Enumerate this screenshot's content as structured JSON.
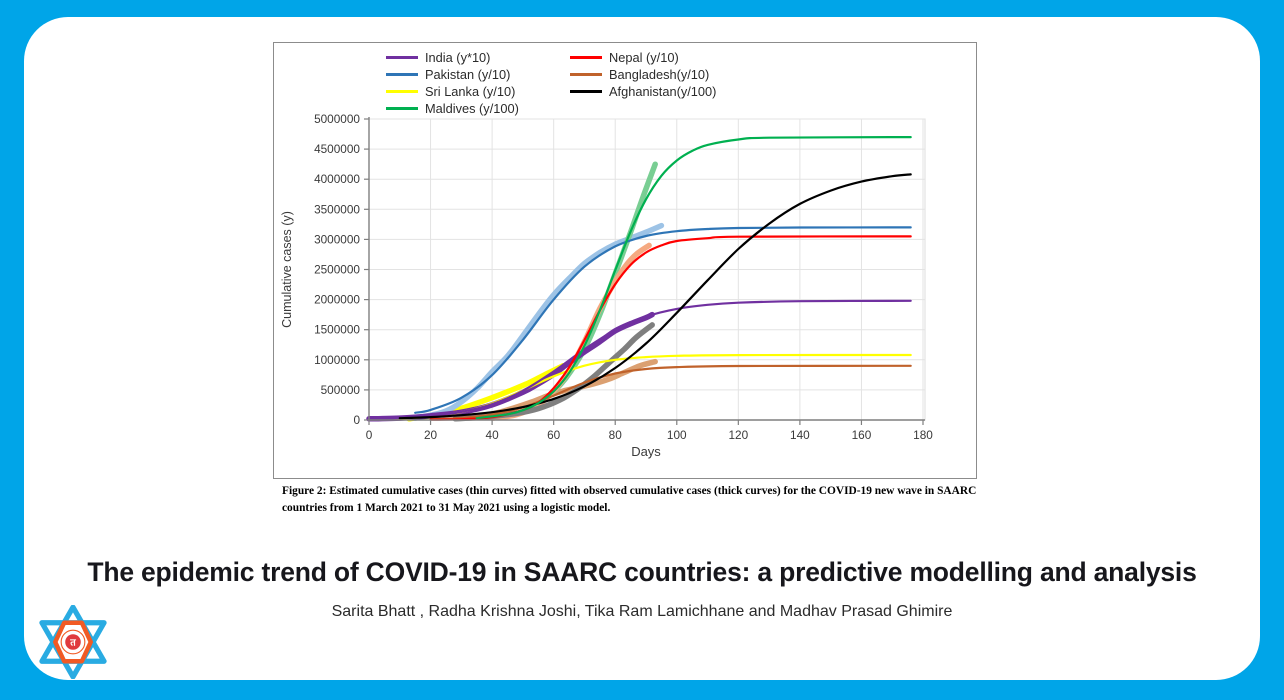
{
  "page": {
    "background_color": "#00A5E8",
    "card_color": "#FFFFFF"
  },
  "figure": {
    "caption": "Figure 2: Estimated cumulative cases (thin curves) fitted with observed cumulative cases (thick curves) for the COVID-19 new wave in SAARC countries from 1 March 2021 to 31 May 2021 using a logistic model."
  },
  "paper": {
    "title": "The epidemic trend of COVID-19 in SAARC countries: a predictive modelling and analysis",
    "authors": "Sarita Bhatt , Radha Krishna Joshi, Tika Ram Lamichhane and Madhav Prasad Ghimire"
  },
  "logo": {
    "name": "university-star-emblem",
    "colors": {
      "blue": "#29ABE2",
      "orange": "#F15A24",
      "red": "#E03A3E"
    },
    "center_glyph": "त"
  },
  "chart_data": {
    "type": "line",
    "title": "",
    "xlabel": "Days",
    "ylabel": "Cumulative cases (y)",
    "xlim": [
      0,
      180
    ],
    "ylim": [
      0,
      5000000
    ],
    "x_ticks": [
      0,
      20,
      40,
      60,
      80,
      100,
      120,
      140,
      160,
      180
    ],
    "y_ticks": [
      0,
      500000,
      1000000,
      1500000,
      2000000,
      2500000,
      3000000,
      3500000,
      4000000,
      4500000,
      5000000
    ],
    "grid": true,
    "legend_position": "top",
    "legend": [
      {
        "label": "India (y*10)",
        "color": "#7030A0"
      },
      {
        "label": "Nepal (y/10)",
        "color": "#FF0000"
      },
      {
        "label": "Pakistan (y/10)",
        "color": "#2E75B6"
      },
      {
        "label": "Bangladesh(y/10)",
        "color": "#C0622B"
      },
      {
        "label": "Sri Lanka (y/10)",
        "color": "#FFFF00"
      },
      {
        "label": "Afghanistan(y/100)",
        "color": "#000000"
      },
      {
        "label": "Maldives (y/100)",
        "color": "#00B050"
      }
    ],
    "series": [
      {
        "name": "Sri Lanka observed (thick)",
        "role": "observed",
        "color": "#FFFF00",
        "points": [
          [
            13,
            20000
          ],
          [
            20,
            70000
          ],
          [
            27,
            150000
          ],
          [
            34,
            260000
          ],
          [
            40,
            370000
          ],
          [
            46,
            490000
          ],
          [
            52,
            620000
          ],
          [
            57,
            750000
          ],
          [
            63,
            900000
          ]
        ]
      },
      {
        "name": "Pakistan observed (thick)",
        "role": "observed",
        "color": "#9DC3E6",
        "points": [
          [
            15,
            30000
          ],
          [
            20,
            80000
          ],
          [
            25,
            150000
          ],
          [
            30,
            300000
          ],
          [
            35,
            520000
          ],
          [
            40,
            800000
          ],
          [
            45,
            1060000
          ],
          [
            50,
            1400000
          ],
          [
            55,
            1750000
          ],
          [
            60,
            2080000
          ],
          [
            65,
            2350000
          ],
          [
            70,
            2600000
          ],
          [
            75,
            2780000
          ],
          [
            80,
            2920000
          ],
          [
            85,
            3020000
          ],
          [
            90,
            3120000
          ],
          [
            95,
            3230000
          ]
        ]
      },
      {
        "name": "Bangladesh observed (thick)",
        "role": "observed",
        "color": "#DBA071",
        "points": [
          [
            30,
            30000
          ],
          [
            40,
            100000
          ],
          [
            47,
            200000
          ],
          [
            53,
            300000
          ],
          [
            58,
            400000
          ],
          [
            63,
            480000
          ],
          [
            68,
            540000
          ],
          [
            73,
            600000
          ],
          [
            78,
            680000
          ],
          [
            83,
            790000
          ],
          [
            88,
            900000
          ],
          [
            93,
            970000
          ]
        ]
      },
      {
        "name": "Maldives observed (thick)",
        "role": "observed",
        "color": "#79CE93",
        "points": [
          [
            45,
            60000
          ],
          [
            52,
            180000
          ],
          [
            58,
            380000
          ],
          [
            64,
            700000
          ],
          [
            70,
            1180000
          ],
          [
            75,
            1750000
          ],
          [
            80,
            2430000
          ],
          [
            85,
            3120000
          ],
          [
            89,
            3700000
          ],
          [
            93,
            4250000
          ]
        ]
      },
      {
        "name": "Nepal observed (thick)",
        "role": "observed",
        "color": "#F5A981",
        "points": [
          [
            40,
            30000
          ],
          [
            48,
            90000
          ],
          [
            55,
            250000
          ],
          [
            60,
            480000
          ],
          [
            65,
            820000
          ],
          [
            70,
            1300000
          ],
          [
            75,
            1850000
          ],
          [
            80,
            2300000
          ],
          [
            84,
            2600000
          ],
          [
            87,
            2760000
          ],
          [
            91,
            2900000
          ]
        ]
      },
      {
        "name": "Afghanistan observed (thick)",
        "role": "observed",
        "color": "#7F7F7F",
        "points": [
          [
            28,
            20000
          ],
          [
            38,
            50000
          ],
          [
            48,
            110000
          ],
          [
            55,
            190000
          ],
          [
            62,
            330000
          ],
          [
            68,
            520000
          ],
          [
            73,
            720000
          ],
          [
            78,
            950000
          ],
          [
            83,
            1180000
          ],
          [
            87,
            1380000
          ],
          [
            92,
            1580000
          ]
        ]
      },
      {
        "name": "India observed (thick)",
        "role": "observed",
        "color": "#7030A0",
        "points": [
          [
            0,
            20000
          ],
          [
            10,
            32000
          ],
          [
            20,
            70000
          ],
          [
            30,
            130000
          ],
          [
            40,
            250000
          ],
          [
            50,
            460000
          ],
          [
            55,
            600000
          ],
          [
            60,
            760000
          ],
          [
            65,
            950000
          ],
          [
            70,
            1130000
          ],
          [
            75,
            1300000
          ],
          [
            80,
            1480000
          ],
          [
            85,
            1600000
          ],
          [
            90,
            1700000
          ],
          [
            92,
            1750000
          ]
        ]
      },
      {
        "name": "Sri Lanka fitted (thin)",
        "role": "fitted",
        "color": "#FFFF00",
        "points": [
          [
            5,
            15000
          ],
          [
            10,
            24000
          ],
          [
            20,
            57000
          ],
          [
            30,
            131000
          ],
          [
            40,
            274000
          ],
          [
            50,
            490000
          ],
          [
            60,
            726000
          ],
          [
            70,
            902000
          ],
          [
            80,
            1000000
          ],
          [
            90,
            1045000
          ],
          [
            100,
            1066000
          ],
          [
            120,
            1078000
          ],
          [
            176,
            1080000
          ]
        ]
      },
      {
        "name": "Bangladesh fitted (thin)",
        "role": "fitted",
        "color": "#C0622B",
        "points": [
          [
            20,
            13000
          ],
          [
            30,
            35000
          ],
          [
            40,
            90000
          ],
          [
            50,
            208000
          ],
          [
            60,
            405000
          ],
          [
            70,
            621000
          ],
          [
            80,
            772000
          ],
          [
            90,
            848000
          ],
          [
            100,
            879000
          ],
          [
            120,
            897000
          ],
          [
            176,
            900000
          ]
        ]
      },
      {
        "name": "India fitted (thin)",
        "role": "fitted",
        "color": "#7030A0",
        "points": [
          [
            0,
            15000
          ],
          [
            10,
            31000
          ],
          [
            20,
            66000
          ],
          [
            30,
            134000
          ],
          [
            40,
            263000
          ],
          [
            50,
            485000
          ],
          [
            60,
            807000
          ],
          [
            70,
            1174000
          ],
          [
            80,
            1494000
          ],
          [
            90,
            1717000
          ],
          [
            100,
            1846000
          ],
          [
            110,
            1914000
          ],
          [
            120,
            1948000
          ],
          [
            140,
            1973000
          ],
          [
            176,
            1980000
          ]
        ]
      },
      {
        "name": "Pakistan fitted (thin)",
        "role": "fitted",
        "color": "#2E75B6",
        "points": [
          [
            15,
            120000
          ],
          [
            20,
            168000
          ],
          [
            30,
            368000
          ],
          [
            40,
            746000
          ],
          [
            50,
            1331000
          ],
          [
            60,
            2000000
          ],
          [
            70,
            2546000
          ],
          [
            80,
            2883000
          ],
          [
            90,
            3056000
          ],
          [
            100,
            3137000
          ],
          [
            110,
            3173000
          ],
          [
            120,
            3190000
          ],
          [
            140,
            3198000
          ],
          [
            176,
            3200000
          ]
        ]
      },
      {
        "name": "Nepal fitted (thin)",
        "role": "fitted",
        "color": "#FF0000",
        "points": [
          [
            20,
            5000
          ],
          [
            30,
            14000
          ],
          [
            40,
            47000
          ],
          [
            50,
            165000
          ],
          [
            55,
            290000
          ],
          [
            60,
            530000
          ],
          [
            65,
            876000
          ],
          [
            70,
            1328000
          ],
          [
            75,
            1819000
          ],
          [
            80,
            2254000
          ],
          [
            85,
            2576000
          ],
          [
            90,
            2782000
          ],
          [
            95,
            2900000
          ],
          [
            100,
            2973000
          ],
          [
            110,
            3020000
          ],
          [
            120,
            3045000
          ],
          [
            176,
            3050000
          ]
        ]
      },
      {
        "name": "Afghanistan fitted (thin)",
        "role": "fitted",
        "color": "#000000",
        "points": [
          [
            10,
            30000
          ],
          [
            20,
            48000
          ],
          [
            30,
            80000
          ],
          [
            40,
            130000
          ],
          [
            50,
            215000
          ],
          [
            60,
            350000
          ],
          [
            70,
            560000
          ],
          [
            80,
            864000
          ],
          [
            90,
            1270000
          ],
          [
            100,
            1780000
          ],
          [
            110,
            2320000
          ],
          [
            120,
            2840000
          ],
          [
            130,
            3260000
          ],
          [
            140,
            3590000
          ],
          [
            150,
            3810000
          ],
          [
            160,
            3960000
          ],
          [
            170,
            4050000
          ],
          [
            176,
            4080000
          ]
        ]
      },
      {
        "name": "Maldives fitted (thin)",
        "role": "fitted",
        "color": "#00B050",
        "points": [
          [
            35,
            30000
          ],
          [
            45,
            95000
          ],
          [
            50,
            162000
          ],
          [
            55,
            280000
          ],
          [
            60,
            475000
          ],
          [
            65,
            783000
          ],
          [
            70,
            1232000
          ],
          [
            75,
            1820000
          ],
          [
            80,
            2485000
          ],
          [
            85,
            3130000
          ],
          [
            90,
            3666000
          ],
          [
            95,
            4056000
          ],
          [
            100,
            4310000
          ],
          [
            105,
            4470000
          ],
          [
            110,
            4570000
          ],
          [
            120,
            4660000
          ],
          [
            130,
            4690000
          ],
          [
            176,
            4700000
          ]
        ]
      }
    ]
  }
}
